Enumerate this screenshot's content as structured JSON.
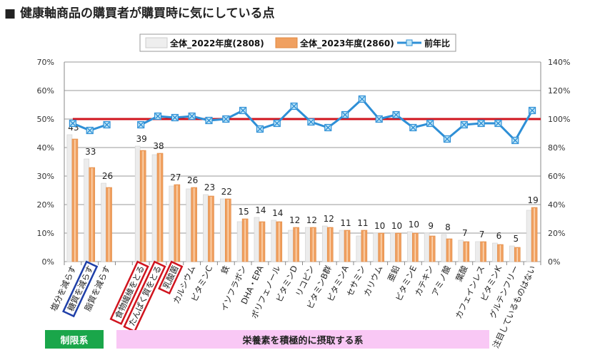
{
  "title": "■ 健康軸商品の購買者が購買時に気にしている点",
  "bands": {
    "restrict": "制限系",
    "nutrient": "栄養素を積極的に摂取する系"
  },
  "chart_data": {
    "type": "bar",
    "categories": [
      "塩分を減らす",
      "糖質を減らす",
      "脂質を減らす",
      "",
      "食物繊維をとる",
      "たんぱく質をとる",
      "乳酸菌",
      "カルシウム",
      "ビタミンC",
      "鉄",
      "イソフラボン",
      "DHA・EPA",
      "ポリフェノール",
      "ビタミンD",
      "リコピン",
      "ビタミンB群",
      "ビタミンA",
      "セサミン",
      "カリウム",
      "亜鉛",
      "ビタミンE",
      "カテキン",
      "アミノ酸",
      "葉酸",
      "カフェインレス",
      "ビタミンK",
      "グルテンフリー",
      "注目しているものはない"
    ],
    "series": [
      {
        "name": "全体_2022年度(2808)",
        "axis": "left",
        "color": "#d9d9d9",
        "values": [
          44.5,
          36,
          27.5,
          null,
          40.5,
          37.5,
          26.5,
          25.5,
          23.5,
          22,
          14,
          15.5,
          14.5,
          11,
          12,
          12.5,
          11,
          9,
          10,
          10,
          10.5,
          10,
          9.5,
          7.5,
          7,
          6.5,
          5.5,
          18
        ]
      },
      {
        "name": "全体_2023年度(2860)",
        "axis": "left",
        "color": "#f0a060",
        "values": [
          43,
          33,
          26,
          null,
          39,
          38,
          27,
          26,
          23,
          22,
          15,
          14,
          14,
          12,
          12,
          12,
          11,
          11,
          10,
          10,
          10,
          9,
          8,
          7,
          7,
          6,
          5,
          19
        ],
        "data_labels": [
          "43",
          "33",
          "26",
          "",
          "39",
          "38",
          "27",
          "26",
          "23",
          "22",
          "15",
          "14",
          "14",
          "12",
          "12",
          "12",
          "11",
          "11",
          "10",
          "10",
          "10",
          "9",
          "8",
          "7",
          "7",
          "6",
          "5",
          "19"
        ]
      },
      {
        "name": "前年比",
        "axis": "right",
        "type": "line",
        "color": "#2e8fd6",
        "values": [
          97,
          92,
          96,
          null,
          96,
          102,
          101,
          102,
          99,
          100,
          106,
          93,
          97,
          109,
          98,
          94,
          103,
          114,
          100,
          103,
          94,
          97,
          86,
          96,
          97,
          97,
          85,
          106
        ]
      }
    ],
    "reference_line": {
      "axis": "right",
      "value": 100,
      "color": "#d0141e"
    },
    "y_left": {
      "range": [
        0,
        70
      ],
      "ticks": [
        "0%",
        "10%",
        "20%",
        "30%",
        "40%",
        "50%",
        "60%",
        "70%"
      ]
    },
    "y_right": {
      "range": [
        0,
        140
      ],
      "ticks": [
        "0%",
        "20%",
        "40%",
        "60%",
        "80%",
        "100%",
        "120%",
        "140%"
      ]
    },
    "grid": true,
    "legend": "top",
    "highlight_boxes": [
      {
        "category": "糖質を減らす",
        "color": "#1f3fa8"
      },
      {
        "category": "食物繊維をとる",
        "color": "#d0141e"
      },
      {
        "category": "たんぱく質をとる",
        "color": "#d0141e"
      },
      {
        "category": "乳酸菌",
        "color": "#d0141e"
      }
    ]
  }
}
